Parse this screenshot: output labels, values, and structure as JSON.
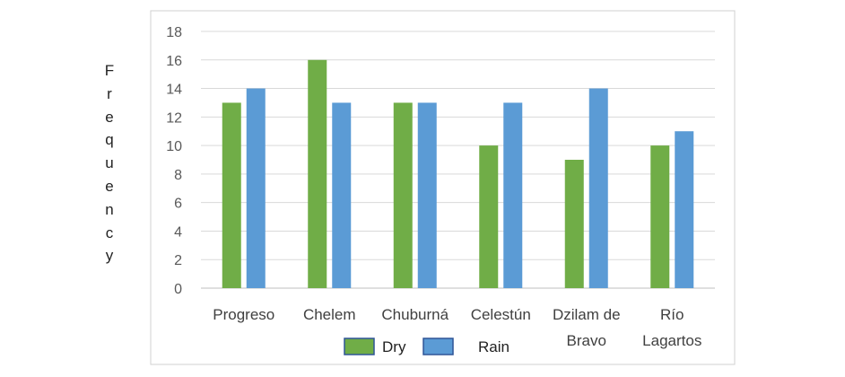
{
  "chart_data": {
    "type": "bar",
    "title": "",
    "xlabel": "",
    "ylabel": "Frequency",
    "categories": [
      [
        "Progreso"
      ],
      [
        "Chelem"
      ],
      [
        "Chuburná"
      ],
      [
        "Celestún"
      ],
      [
        "Dzilam de",
        "Bravo"
      ],
      [
        "Río",
        "Lagartos"
      ]
    ],
    "series": [
      {
        "name": "Dry",
        "values": [
          13,
          16,
          13,
          10,
          9,
          10
        ],
        "color": "#70ad47"
      },
      {
        "name": "Rain",
        "values": [
          14,
          13,
          13,
          13,
          14,
          11
        ],
        "color": "#5b9bd5"
      }
    ],
    "ylim": [
      0,
      18
    ],
    "yticks": [
      0,
      2,
      4,
      6,
      8,
      10,
      12,
      14,
      16,
      18
    ],
    "grid": true,
    "legend_position": "bottom"
  }
}
